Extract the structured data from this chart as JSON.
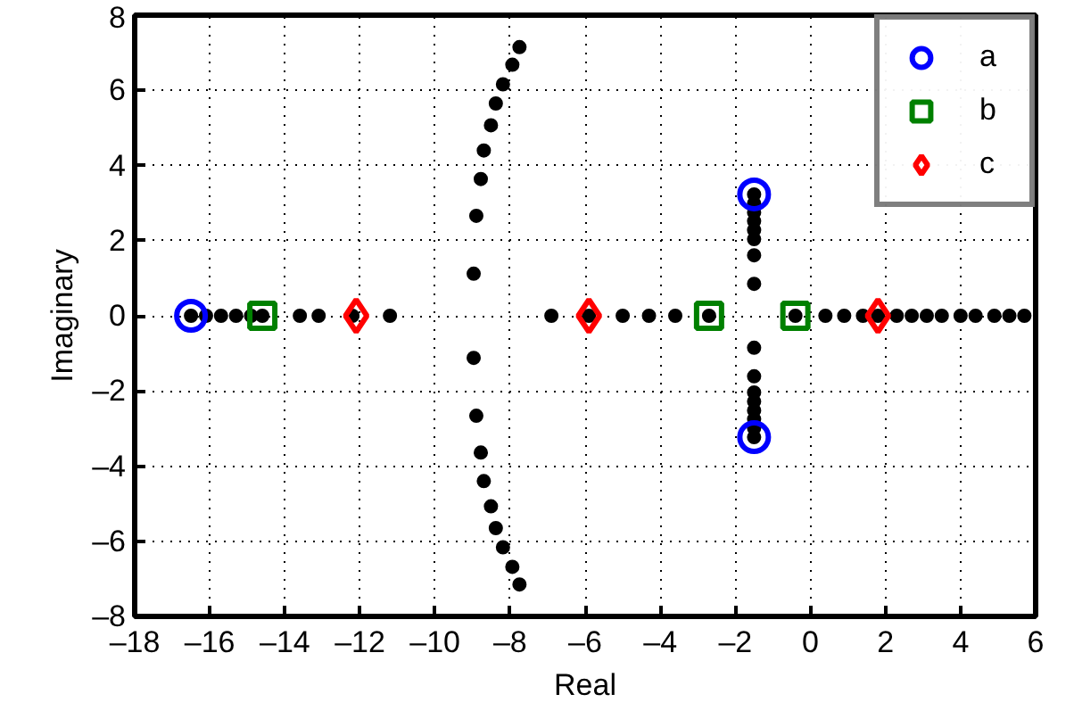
{
  "chart_data": {
    "type": "scatter",
    "xlabel": "Real",
    "ylabel": "Imaginary",
    "xlim": [
      -18,
      6
    ],
    "ylim": [
      -8,
      8
    ],
    "xticks": [
      {
        "value": -18,
        "label": "–18"
      },
      {
        "value": -16,
        "label": "–16"
      },
      {
        "value": -14,
        "label": "–14"
      },
      {
        "value": -12,
        "label": "–12"
      },
      {
        "value": -10,
        "label": "–10"
      },
      {
        "value": -8,
        "label": "–8"
      },
      {
        "value": -6,
        "label": "–6"
      },
      {
        "value": -4,
        "label": "–4"
      },
      {
        "value": -2,
        "label": "–2"
      },
      0,
      2,
      4,
      6
    ],
    "yticks": [
      {
        "value": -8,
        "label": "–8"
      },
      {
        "value": -6,
        "label": "–6"
      },
      {
        "value": -4,
        "label": "–4"
      },
      {
        "value": -2,
        "label": "–2"
      },
      0,
      2,
      4,
      6,
      8
    ],
    "grid": true,
    "legend": "top right",
    "series": [
      {
        "color": "#000000",
        "marker": "circle",
        "x": [
          -16.5,
          -16.1,
          -15.7,
          -15.3,
          -14.9,
          -14.6,
          -13.6,
          -13.1,
          -12.2,
          -11.2,
          -6.9,
          -5.9,
          -5.0,
          -4.3,
          -3.6,
          -2.7,
          -0.4,
          0.4,
          0.9,
          1.4,
          1.8,
          2.3,
          2.7,
          3.1,
          3.5,
          4.0,
          4.4,
          4.9,
          5.3,
          5.7,
          -7.75,
          -7.94,
          -8.19,
          -8.38,
          -8.51,
          -8.7,
          -8.78,
          -8.9,
          -8.97,
          -7.75,
          -7.94,
          -8.19,
          -8.38,
          -8.51,
          -8.7,
          -8.78,
          -8.9,
          -8.97,
          -1.5,
          -1.5,
          -1.5,
          -1.5,
          -1.5,
          -1.5,
          -1.5,
          -1.5,
          -1.5,
          -1.5,
          -1.5,
          -1.5,
          -1.5,
          -1.5,
          -1.5,
          -1.5
        ],
        "values": [
          0,
          0,
          0,
          0,
          0,
          0,
          0,
          0,
          0,
          0,
          0,
          0,
          0,
          0,
          0,
          0,
          0,
          0,
          0,
          0,
          0,
          0,
          0,
          0,
          0,
          0,
          0,
          0,
          0,
          0,
          7.15,
          6.68,
          6.16,
          5.65,
          5.07,
          4.4,
          3.64,
          2.66,
          1.12,
          -7.15,
          -6.68,
          -6.16,
          -5.65,
          -5.07,
          -4.4,
          -3.64,
          -2.66,
          -1.12,
          3.23,
          2.99,
          2.75,
          2.52,
          2.28,
          2.04,
          1.61,
          0.85,
          -3.23,
          -2.99,
          -2.75,
          -2.52,
          -2.28,
          -2.04,
          -1.61,
          -0.85
        ]
      },
      {
        "name": "a",
        "color": "#0000ff",
        "marker": "circle",
        "x": [
          -16.5,
          -1.5,
          -1.5
        ],
        "values": [
          0,
          3.23,
          -3.23
        ]
      },
      {
        "name": "b",
        "color": "#008000",
        "marker": "square",
        "x": [
          -14.6,
          -2.7,
          -0.4
        ],
        "values": [
          0,
          0,
          0
        ]
      },
      {
        "name": "c",
        "color": "#ff0000",
        "marker": "diamond",
        "x": [
          -12.1,
          -5.9,
          1.8
        ],
        "values": [
          0,
          0,
          0
        ]
      }
    ]
  }
}
